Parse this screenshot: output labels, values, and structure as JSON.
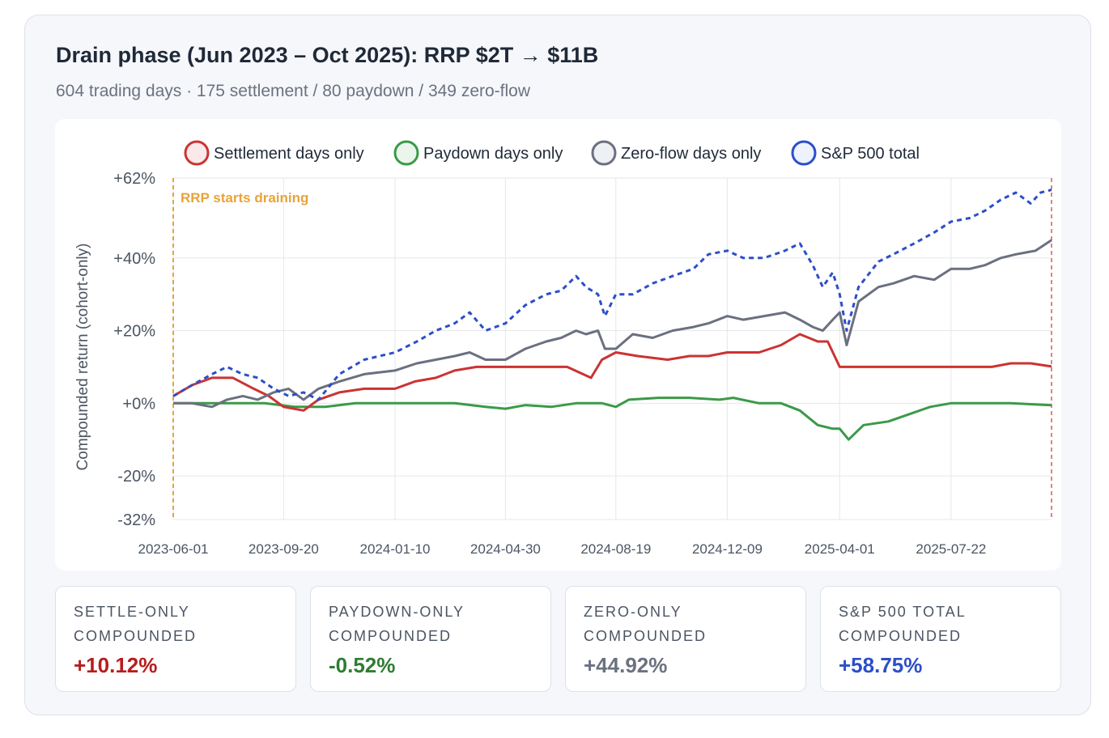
{
  "header": {
    "title": "Drain phase (Jun 2023 – Oct 2025): RRP $2T → $11B",
    "subtitle": "604 trading days · 175 settlement / 80 paydown / 349 zero-flow"
  },
  "stats": [
    {
      "label": "SETTLE-ONLY COMPOUNDED",
      "value": "+10.12%",
      "color": "#b91c1c"
    },
    {
      "label": "PAYDOWN-ONLY COMPOUNDED",
      "value": "-0.52%",
      "color": "#2f7d32"
    },
    {
      "label": "ZERO-ONLY COMPOUNDED",
      "value": "+44.92%",
      "color": "#6b7280"
    },
    {
      "label": "S&P 500 TOTAL COMPOUNDED",
      "value": "+58.75%",
      "color": "#2d4ec8"
    }
  ],
  "chart_data": {
    "type": "line",
    "ylabel": "Compounded return (cohort-only)",
    "ylim": [
      -32,
      62
    ],
    "yticks": [
      "+62%",
      "+40%",
      "+20%",
      "+0%",
      "-20%",
      "-32%"
    ],
    "ytick_values": [
      62,
      40,
      20,
      0,
      -20,
      -32
    ],
    "xlim": [
      "2023-06-01",
      "2025-10-31"
    ],
    "xticks": [
      "2023-06-01",
      "2023-09-20",
      "2024-01-10",
      "2024-04-30",
      "2024-08-19",
      "2024-12-09",
      "2025-04-01",
      "2025-07-22"
    ],
    "grid": true,
    "legend_position": "top",
    "annotation": {
      "text": "RRP starts draining",
      "x": "2023-06-01",
      "color": "#e8a33a"
    },
    "series": [
      {
        "name": "Settlement days only",
        "color": "#cc3333",
        "style": "solid",
        "points": [
          [
            "2023-06-01",
            2
          ],
          [
            "2023-06-20",
            5
          ],
          [
            "2023-07-10",
            7
          ],
          [
            "2023-07-31",
            7
          ],
          [
            "2023-08-21",
            4
          ],
          [
            "2023-09-05",
            2
          ],
          [
            "2023-09-20",
            -1
          ],
          [
            "2023-10-10",
            -2
          ],
          [
            "2023-10-25",
            1
          ],
          [
            "2023-11-15",
            3
          ],
          [
            "2023-12-10",
            4
          ],
          [
            "2024-01-10",
            4
          ],
          [
            "2024-01-30",
            6
          ],
          [
            "2024-02-20",
            7
          ],
          [
            "2024-03-10",
            9
          ],
          [
            "2024-04-01",
            10
          ],
          [
            "2024-04-30",
            10
          ],
          [
            "2024-05-20",
            10
          ],
          [
            "2024-06-10",
            10
          ],
          [
            "2024-07-01",
            10
          ],
          [
            "2024-07-25",
            7
          ],
          [
            "2024-08-05",
            12
          ],
          [
            "2024-08-19",
            14
          ],
          [
            "2024-09-10",
            13
          ],
          [
            "2024-10-10",
            12
          ],
          [
            "2024-11-01",
            13
          ],
          [
            "2024-11-20",
            13
          ],
          [
            "2024-12-09",
            14
          ],
          [
            "2025-01-10",
            14
          ],
          [
            "2025-02-01",
            16
          ],
          [
            "2025-02-20",
            19
          ],
          [
            "2025-03-10",
            17
          ],
          [
            "2025-03-20",
            17
          ],
          [
            "2025-04-01",
            10
          ],
          [
            "2025-04-20",
            10
          ],
          [
            "2025-05-20",
            10
          ],
          [
            "2025-06-20",
            10
          ],
          [
            "2025-07-22",
            10
          ],
          [
            "2025-08-15",
            10
          ],
          [
            "2025-09-01",
            10
          ],
          [
            "2025-09-20",
            11
          ],
          [
            "2025-10-10",
            11
          ],
          [
            "2025-10-31",
            10.12
          ]
        ]
      },
      {
        "name": "Paydown days only",
        "color": "#3a9a48",
        "style": "solid",
        "points": [
          [
            "2023-06-01",
            0
          ],
          [
            "2023-07-01",
            0
          ],
          [
            "2023-08-01",
            0
          ],
          [
            "2023-09-01",
            0
          ],
          [
            "2023-10-01",
            -1
          ],
          [
            "2023-11-01",
            -1
          ],
          [
            "2023-12-01",
            0
          ],
          [
            "2024-01-10",
            0
          ],
          [
            "2024-02-10",
            0
          ],
          [
            "2024-03-10",
            0
          ],
          [
            "2024-04-10",
            -1
          ],
          [
            "2024-04-30",
            -1.5
          ],
          [
            "2024-05-20",
            -0.5
          ],
          [
            "2024-06-15",
            -1
          ],
          [
            "2024-07-10",
            0
          ],
          [
            "2024-08-05",
            0
          ],
          [
            "2024-08-19",
            -1
          ],
          [
            "2024-09-01",
            1
          ],
          [
            "2024-10-01",
            1.5
          ],
          [
            "2024-11-01",
            1.5
          ],
          [
            "2024-12-01",
            1
          ],
          [
            "2024-12-15",
            1.5
          ],
          [
            "2025-01-10",
            0
          ],
          [
            "2025-02-01",
            0
          ],
          [
            "2025-02-20",
            -2
          ],
          [
            "2025-03-10",
            -6
          ],
          [
            "2025-03-25",
            -7
          ],
          [
            "2025-04-01",
            -7
          ],
          [
            "2025-04-10",
            -10
          ],
          [
            "2025-04-25",
            -6
          ],
          [
            "2025-05-20",
            -5
          ],
          [
            "2025-06-10",
            -3
          ],
          [
            "2025-07-01",
            -1
          ],
          [
            "2025-07-22",
            0
          ],
          [
            "2025-08-20",
            0
          ],
          [
            "2025-09-20",
            0
          ],
          [
            "2025-10-31",
            -0.52
          ]
        ]
      },
      {
        "name": "Zero-flow days only",
        "color": "#6b7080",
        "style": "solid",
        "points": [
          [
            "2023-06-01",
            0
          ],
          [
            "2023-06-20",
            0
          ],
          [
            "2023-07-10",
            -1
          ],
          [
            "2023-07-25",
            1
          ],
          [
            "2023-08-10",
            2
          ],
          [
            "2023-08-25",
            1
          ],
          [
            "2023-09-10",
            3
          ],
          [
            "2023-09-25",
            4
          ],
          [
            "2023-10-10",
            1
          ],
          [
            "2023-10-25",
            4
          ],
          [
            "2023-11-15",
            6
          ],
          [
            "2023-12-10",
            8
          ],
          [
            "2024-01-10",
            9
          ],
          [
            "2024-02-01",
            11
          ],
          [
            "2024-02-20",
            12
          ],
          [
            "2024-03-10",
            13
          ],
          [
            "2024-03-25",
            14
          ],
          [
            "2024-04-10",
            12
          ],
          [
            "2024-04-30",
            12
          ],
          [
            "2024-05-20",
            15
          ],
          [
            "2024-06-10",
            17
          ],
          [
            "2024-06-25",
            18
          ],
          [
            "2024-07-10",
            20
          ],
          [
            "2024-07-20",
            19
          ],
          [
            "2024-08-01",
            20
          ],
          [
            "2024-08-08",
            15
          ],
          [
            "2024-08-19",
            15
          ],
          [
            "2024-09-05",
            19
          ],
          [
            "2024-09-25",
            18
          ],
          [
            "2024-10-15",
            20
          ],
          [
            "2024-11-05",
            21
          ],
          [
            "2024-11-20",
            22
          ],
          [
            "2024-12-09",
            24
          ],
          [
            "2024-12-25",
            23
          ],
          [
            "2025-01-15",
            24
          ],
          [
            "2025-02-05",
            25
          ],
          [
            "2025-02-20",
            23
          ],
          [
            "2025-03-05",
            21
          ],
          [
            "2025-03-15",
            20
          ],
          [
            "2025-03-25",
            23
          ],
          [
            "2025-04-01",
            25
          ],
          [
            "2025-04-08",
            16
          ],
          [
            "2025-04-20",
            28
          ],
          [
            "2025-05-10",
            32
          ],
          [
            "2025-05-25",
            33
          ],
          [
            "2025-06-15",
            35
          ],
          [
            "2025-07-05",
            34
          ],
          [
            "2025-07-22",
            37
          ],
          [
            "2025-08-10",
            37
          ],
          [
            "2025-08-25",
            38
          ],
          [
            "2025-09-10",
            40
          ],
          [
            "2025-09-25",
            41
          ],
          [
            "2025-10-15",
            42
          ],
          [
            "2025-10-31",
            44.92
          ]
        ]
      },
      {
        "name": "S&P 500 total",
        "color": "#2d4ec8",
        "style": "dashed",
        "points": [
          [
            "2023-06-01",
            2
          ],
          [
            "2023-06-20",
            5
          ],
          [
            "2023-07-10",
            8
          ],
          [
            "2023-07-25",
            10
          ],
          [
            "2023-08-10",
            8
          ],
          [
            "2023-08-25",
            7
          ],
          [
            "2023-09-10",
            4
          ],
          [
            "2023-09-25",
            2
          ],
          [
            "2023-10-10",
            3
          ],
          [
            "2023-10-25",
            1
          ],
          [
            "2023-11-15",
            8
          ],
          [
            "2023-12-10",
            12
          ],
          [
            "2024-01-10",
            14
          ],
          [
            "2024-02-01",
            17
          ],
          [
            "2024-02-20",
            20
          ],
          [
            "2024-03-10",
            22
          ],
          [
            "2024-03-25",
            25
          ],
          [
            "2024-04-10",
            20
          ],
          [
            "2024-04-30",
            22
          ],
          [
            "2024-05-20",
            27
          ],
          [
            "2024-06-10",
            30
          ],
          [
            "2024-06-25",
            31
          ],
          [
            "2024-07-10",
            35
          ],
          [
            "2024-07-20",
            32
          ],
          [
            "2024-08-01",
            30
          ],
          [
            "2024-08-08",
            24
          ],
          [
            "2024-08-19",
            30
          ],
          [
            "2024-09-05",
            30
          ],
          [
            "2024-09-25",
            33
          ],
          [
            "2024-10-15",
            35
          ],
          [
            "2024-11-05",
            37
          ],
          [
            "2024-11-20",
            41
          ],
          [
            "2024-12-09",
            42
          ],
          [
            "2024-12-25",
            40
          ],
          [
            "2025-01-15",
            40
          ],
          [
            "2025-02-05",
            42
          ],
          [
            "2025-02-20",
            44
          ],
          [
            "2025-03-05",
            38
          ],
          [
            "2025-03-15",
            32
          ],
          [
            "2025-03-25",
            36
          ],
          [
            "2025-04-01",
            30
          ],
          [
            "2025-04-08",
            20
          ],
          [
            "2025-04-20",
            32
          ],
          [
            "2025-05-10",
            39
          ],
          [
            "2025-05-25",
            41
          ],
          [
            "2025-06-15",
            44
          ],
          [
            "2025-07-05",
            47
          ],
          [
            "2025-07-22",
            50
          ],
          [
            "2025-08-10",
            51
          ],
          [
            "2025-08-25",
            53
          ],
          [
            "2025-09-10",
            56
          ],
          [
            "2025-09-25",
            58
          ],
          [
            "2025-10-10",
            55
          ],
          [
            "2025-10-20",
            58
          ],
          [
            "2025-10-31",
            58.75
          ]
        ]
      }
    ]
  }
}
